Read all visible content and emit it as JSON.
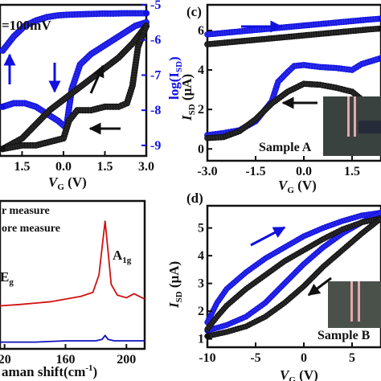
{
  "chart_data": [
    {
      "id": "top-left",
      "type": "line",
      "annotation": "=100mV",
      "xlabel": "V",
      "xlabel_sub": "G",
      "xlabel_unit": " (V)",
      "x_ticks": [
        "1.5",
        "0.0",
        "1.5",
        "3.0"
      ],
      "x_tick_values": [
        -1.5,
        0.0,
        1.5,
        3.0
      ],
      "xlim": [
        -2.3,
        3.0
      ],
      "y2label": "log(I",
      "y2label_sub": "SD",
      "y2label_close": ")",
      "y2_ticks": [
        "-5",
        "-6",
        "-7",
        "-8",
        "-9"
      ],
      "y2_tick_values": [
        -5,
        -6,
        -7,
        -8,
        -9
      ],
      "y2lim": [
        -9.3,
        -5.0
      ],
      "series": [
        {
          "color": "#1010e0",
          "x": [
            -2.2,
            -1.8,
            -1.4,
            -1.0,
            -0.6,
            -0.2,
            0.2,
            0.6,
            1.0,
            1.4,
            1.8,
            2.2,
            2.6,
            3.0
          ],
          "y": [
            -6.3,
            -5.9,
            -5.6,
            -5.45,
            -5.35,
            -5.3,
            -5.28,
            -5.27,
            -5.26,
            -5.25,
            -5.25,
            -5.24,
            -5.24,
            -5.24
          ]
        },
        {
          "color": "#1010e0",
          "x": [
            3.0,
            2.6,
            2.2,
            1.8,
            1.4,
            1.0,
            0.6,
            0.3,
            0.1,
            -0.2,
            -0.6,
            -1.0,
            -1.4,
            -1.8,
            -2.2
          ],
          "y": [
            -5.5,
            -5.6,
            -5.8,
            -6.0,
            -6.2,
            -6.4,
            -6.7,
            -7.4,
            -8.5,
            -8.3,
            -8.1,
            -7.9,
            -7.8,
            -7.8,
            -7.9
          ]
        },
        {
          "color": "#111111",
          "x": [
            -2.2,
            -1.5,
            -1.0,
            -0.5,
            0.0,
            0.5,
            1.0,
            1.5,
            2.0,
            2.5,
            3.0
          ],
          "y": [
            -9.1,
            -8.8,
            -8.4,
            -8.0,
            -7.7,
            -7.4,
            -7.1,
            -6.8,
            -6.5,
            -6.1,
            -5.6
          ]
        },
        {
          "color": "#111111",
          "x": [
            3.0,
            2.7,
            2.5,
            2.3,
            2.0,
            1.5,
            1.0,
            0.5,
            0.2,
            0.0,
            -0.5,
            -1.0,
            -1.5,
            -2.2
          ],
          "y": [
            -5.6,
            -6.2,
            -7.3,
            -7.8,
            -7.9,
            -7.9,
            -8.0,
            -8.0,
            -8.3,
            -8.8,
            -8.9,
            -9.0,
            -9.0,
            -9.1
          ]
        }
      ]
    },
    {
      "id": "c",
      "type": "line",
      "panel_label": "(c)",
      "sample_label": "Sample A",
      "xlabel": "V",
      "xlabel_sub": "G",
      "xlabel_unit": " (V)",
      "ylabel": "I",
      "ylabel_sub": "SD",
      "ylabel_unit": " (μA)",
      "x_ticks": [
        "-3.0",
        "-1.5",
        "0.0",
        "1.5"
      ],
      "x_tick_values": [
        -3.0,
        -1.5,
        0.0,
        1.5
      ],
      "xlim": [
        -3.0,
        2.4
      ],
      "y_ticks": [
        "0",
        "2",
        "4",
        "6"
      ],
      "y_tick_values": [
        0,
        2,
        4,
        6
      ],
      "ylim": [
        -0.6,
        7.3
      ],
      "series": [
        {
          "color": "#1010e0",
          "x": [
            -3.0,
            -2.0,
            -1.0,
            0.0,
            1.0,
            2.0,
            2.4
          ],
          "y": [
            5.8,
            5.95,
            6.1,
            6.25,
            6.4,
            6.55,
            6.6
          ]
        },
        {
          "color": "#111111",
          "x": [
            -3.0,
            -2.0,
            -1.0,
            0.0,
            1.0,
            2.0,
            2.4
          ],
          "y": [
            5.3,
            5.45,
            5.6,
            5.75,
            5.9,
            6.05,
            6.1
          ]
        },
        {
          "color": "#1010e0",
          "x": [
            -3.0,
            -2.5,
            -2.0,
            -1.5,
            -1.0,
            -0.8,
            -0.5,
            -0.3,
            0.0,
            0.5,
            1.0,
            1.5,
            1.8,
            2.4
          ],
          "y": [
            0.7,
            0.8,
            0.95,
            1.4,
            2.4,
            3.4,
            3.9,
            4.2,
            4.25,
            4.15,
            4.1,
            4.0,
            4.3,
            4.6
          ]
        },
        {
          "color": "#111111",
          "x": [
            -3.0,
            -2.5,
            -2.0,
            -1.5,
            -1.0,
            -0.5,
            0.0,
            0.5,
            1.0,
            1.5,
            1.8
          ],
          "y": [
            0.55,
            0.6,
            0.9,
            1.5,
            2.3,
            2.9,
            3.3,
            3.25,
            3.1,
            2.9,
            2.5
          ]
        }
      ]
    },
    {
      "id": "raman",
      "type": "line",
      "legend": [
        "r measure",
        "ore measure"
      ],
      "xlabel": "aman shift(cm",
      "xlabel_sup": "-1",
      "xlabel_close": ")",
      "x_ticks": [
        "20",
        "160",
        "200"
      ],
      "x_tick_values": [
        120,
        160,
        200
      ],
      "xlim": [
        117,
        212
      ],
      "peak_labels": [
        {
          "base": "A",
          "sub": "1g"
        },
        {
          "base": "E",
          "sub": "g"
        }
      ],
      "series": [
        {
          "color": "#d01010",
          "x": [
            117,
            130,
            140,
            150,
            160,
            170,
            178,
            182,
            184,
            186,
            188,
            190,
            194,
            200,
            205,
            212
          ],
          "y": [
            0.32,
            0.33,
            0.34,
            0.35,
            0.37,
            0.39,
            0.42,
            0.55,
            0.75,
            0.95,
            0.72,
            0.48,
            0.4,
            0.38,
            0.41,
            0.37
          ]
        },
        {
          "color": "#1010c0",
          "x": [
            117,
            140,
            160,
            180,
            184,
            186,
            188,
            192,
            200,
            212
          ],
          "y": [
            0.05,
            0.05,
            0.06,
            0.06,
            0.07,
            0.1,
            0.07,
            0.06,
            0.06,
            0.06
          ]
        }
      ]
    },
    {
      "id": "d",
      "type": "line",
      "panel_label": "(d)",
      "sample_label": "Sample B",
      "xlabel": "V",
      "xlabel_sub": "G",
      "xlabel_unit": " (V)",
      "ylabel": "I",
      "ylabel_sub": "SD",
      "ylabel_unit": " (μA)",
      "x_ticks": [
        "-10",
        "-5",
        "0",
        "5"
      ],
      "x_tick_values": [
        -10,
        -5,
        0,
        5
      ],
      "xlim": [
        -10,
        8
      ],
      "y_ticks": [
        "1",
        "2",
        "3",
        "4",
        "5"
      ],
      "y_tick_values": [
        1,
        2,
        3,
        4,
        5
      ],
      "ylim": [
        0.7,
        5.8
      ],
      "series": [
        {
          "color": "#1010e0",
          "x": [
            -10,
            -9,
            -8,
            -6,
            -4,
            -2,
            0,
            2,
            4,
            6,
            8
          ],
          "y": [
            1.6,
            2.3,
            2.8,
            3.4,
            3.9,
            4.3,
            4.7,
            5.0,
            5.25,
            5.45,
            5.55
          ]
        },
        {
          "color": "#1010e0",
          "x": [
            8,
            6,
            4,
            2,
            0,
            -2,
            -4,
            -6,
            -8,
            -10
          ],
          "y": [
            5.55,
            5.2,
            4.8,
            4.3,
            3.7,
            3.0,
            2.3,
            1.8,
            1.5,
            1.3
          ]
        },
        {
          "color": "#111111",
          "x": [
            -10,
            -9,
            -8,
            -6,
            -4,
            -2,
            0,
            2,
            4,
            6,
            8
          ],
          "y": [
            1.35,
            1.8,
            2.2,
            2.8,
            3.3,
            3.8,
            4.2,
            4.6,
            4.95,
            5.2,
            5.35
          ]
        },
        {
          "color": "#111111",
          "x": [
            8,
            6,
            4,
            2,
            0,
            -2,
            -4,
            -6,
            -8,
            -10
          ],
          "y": [
            5.35,
            4.8,
            4.2,
            3.6,
            2.9,
            2.3,
            1.8,
            1.45,
            1.25,
            1.1
          ]
        }
      ]
    }
  ]
}
